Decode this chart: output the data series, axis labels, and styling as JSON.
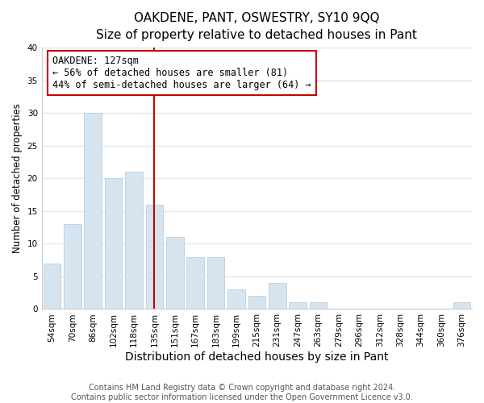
{
  "title": "OAKDENE, PANT, OSWESTRY, SY10 9QQ",
  "subtitle": "Size of property relative to detached houses in Pant",
  "xlabel": "Distribution of detached houses by size in Pant",
  "ylabel": "Number of detached properties",
  "bar_labels": [
    "54sqm",
    "70sqm",
    "86sqm",
    "102sqm",
    "118sqm",
    "135sqm",
    "151sqm",
    "167sqm",
    "183sqm",
    "199sqm",
    "215sqm",
    "231sqm",
    "247sqm",
    "263sqm",
    "279sqm",
    "296sqm",
    "312sqm",
    "328sqm",
    "344sqm",
    "360sqm",
    "376sqm"
  ],
  "bar_values": [
    7,
    13,
    30,
    20,
    21,
    16,
    11,
    8,
    8,
    3,
    2,
    4,
    1,
    1,
    0,
    0,
    0,
    0,
    0,
    0,
    1
  ],
  "bar_color": "#d6e4f0",
  "bar_edge_color": "#b8cfe0",
  "vline_index": 5,
  "vline_color": "#cc0000",
  "annotation_title": "OAKDENE: 127sqm",
  "annotation_line1": "← 56% of detached houses are smaller (81)",
  "annotation_line2": "44% of semi-detached houses are larger (64) →",
  "ylim": [
    0,
    40
  ],
  "yticks": [
    0,
    5,
    10,
    15,
    20,
    25,
    30,
    35,
    40
  ],
  "footer_line1": "Contains HM Land Registry data © Crown copyright and database right 2024.",
  "footer_line2": "Contains public sector information licensed under the Open Government Licence v3.0.",
  "background_color": "#ffffff",
  "grid_color": "#e0e8f0",
  "title_fontsize": 11,
  "subtitle_fontsize": 10,
  "xlabel_fontsize": 10,
  "ylabel_fontsize": 8.5,
  "tick_fontsize": 7.5,
  "footer_fontsize": 7,
  "ann_fontsize": 8.5
}
